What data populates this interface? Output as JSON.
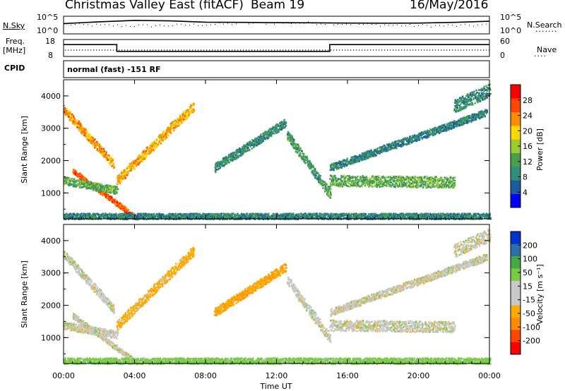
{
  "header": {
    "station": "Christmas Valley East (fitACF)",
    "beam": "Beam 19",
    "date": "16/May/2016"
  },
  "top_panels": {
    "nsky_label": "N.Sky",
    "nsky_ticks": [
      "10^5",
      "10^0"
    ],
    "nsearch_label": "N.Search",
    "freq_label_1": "Freq.",
    "freq_label_2": "[MHz]",
    "freq_ticks": [
      "18",
      "8"
    ],
    "nave_label": "Nave",
    "nave_ticks": [
      "60",
      "0"
    ],
    "cpid_label": "CPID",
    "cpid_text": "normal (fast) -151 RF"
  },
  "colors": {
    "power": [
      "#0000ff",
      "#1e5aa0",
      "#2f8f7a",
      "#4aa04a",
      "#9acd32",
      "#ffd700",
      "#ff8c00",
      "#ff4500",
      "#ff0000"
    ],
    "velocity": [
      "#ff0000",
      "#ff4500",
      "#ff8c00",
      "#ffaa00",
      "#c8c8c8",
      "#c8c8c8",
      "#77cc44",
      "#44aa44",
      "#2d6fa8",
      "#0033cc"
    ],
    "ground_scatter": "#c8c8c8"
  },
  "chart_data": [
    {
      "type": "line",
      "name": "nsky_nsearch",
      "ylabel": "N.Sky",
      "y2label": "N.Search",
      "scale": "log",
      "x": [
        "00:00",
        "02:00",
        "04:00",
        "06:00",
        "08:00",
        "10:00",
        "12:00",
        "14:00",
        "16:00",
        "18:00",
        "20:00",
        "22:00",
        "00:00"
      ],
      "values": [
        1000,
        4000,
        12000,
        8000,
        3000,
        2500,
        2000,
        1800,
        1500,
        1400,
        1500,
        2500,
        6000
      ]
    },
    {
      "type": "line",
      "name": "freq_nave",
      "ylabel": "Freq. [MHz]",
      "ylim": [
        8,
        18
      ],
      "y2label": "Nave",
      "y2lim": [
        0,
        60
      ],
      "x_hours": [
        0,
        3,
        3,
        15,
        15,
        24
      ],
      "frequency_mhz": [
        15,
        15,
        11,
        11,
        15,
        15
      ],
      "nave": [
        24,
        24,
        24,
        24,
        24,
        24
      ]
    },
    {
      "type": "heatmap",
      "name": "power",
      "xlabel": "Time UT",
      "ylabel": "Slant Range [km]",
      "colorbar_label": "Power [dB]",
      "colorbar_ticks": [
        "28",
        "24",
        "20",
        "16",
        "12",
        "8",
        "4"
      ],
      "x_ticks": [
        "00:00",
        "04:00",
        "08:00",
        "12:00",
        "16:00",
        "20:00",
        "00:00"
      ],
      "y_ticks": [
        "4000",
        "3000",
        "2000",
        "1000"
      ],
      "xlim": [
        0,
        24
      ],
      "ylim": [
        200,
        4500
      ],
      "zlim": [
        0,
        30
      ],
      "features": [
        {
          "t": [
            0.0,
            2.8
          ],
          "range": [
            3600,
            1900
          ],
          "value": 21,
          "spread": 130
        },
        {
          "t": [
            3.0,
            7.3
          ],
          "range": [
            1400,
            3700
          ],
          "value": 20,
          "spread": 150
        },
        {
          "t": [
            0.5,
            4.2
          ],
          "range": [
            1700,
            200
          ],
          "value": 24,
          "spread": 80
        },
        {
          "t": [
            0.0,
            3.0
          ],
          "range": [
            1400,
            1100
          ],
          "value": 12,
          "spread": 120
        },
        {
          "t": [
            8.5,
            12.5
          ],
          "range": [
            1800,
            3200
          ],
          "value": 9,
          "spread": 130
        },
        {
          "t": [
            12.6,
            15.0
          ],
          "range": [
            2800,
            1000
          ],
          "value": 10,
          "spread": 150
        },
        {
          "t": [
            15.0,
            22.0
          ],
          "range": [
            1400,
            1350
          ],
          "value": 12,
          "spread": 170
        },
        {
          "t": [
            15.0,
            23.8
          ],
          "range": [
            1800,
            3500
          ],
          "value": 8,
          "spread": 110
        },
        {
          "t": [
            22.0,
            24.0
          ],
          "range": [
            3700,
            4200
          ],
          "value": 9,
          "spread": 200
        },
        {
          "t": [
            0.0,
            24.0
          ],
          "range": [
            300,
            300
          ],
          "value": 8,
          "spread": 90
        }
      ]
    },
    {
      "type": "heatmap",
      "name": "velocity",
      "xlabel": "Time UT",
      "ylabel": "Slant Range [km]",
      "colorbar_label": "Velocity [m s⁻¹]",
      "colorbar_ticks": [
        "200",
        "100",
        "50",
        "15",
        "-15",
        "-50",
        "-100",
        "-200"
      ],
      "x_ticks": [
        "00:00",
        "04:00",
        "08:00",
        "12:00",
        "16:00",
        "20:00",
        "00:00"
      ],
      "y_ticks": [
        "4000",
        "3000",
        "2000",
        "1000"
      ],
      "xlim": [
        0,
        24
      ],
      "ylim": [
        200,
        4500
      ],
      "zlim": [
        -250,
        250
      ],
      "features": [
        {
          "t": [
            0.0,
            2.8
          ],
          "range": [
            3600,
            1900
          ],
          "value": 0,
          "spread": 130
        },
        {
          "t": [
            3.0,
            7.3
          ],
          "range": [
            1400,
            3700
          ],
          "value": -30,
          "spread": 150
        },
        {
          "t": [
            0.5,
            4.2
          ],
          "range": [
            1700,
            200
          ],
          "value": 0,
          "spread": 80
        },
        {
          "t": [
            0.0,
            3.0
          ],
          "range": [
            1400,
            1100
          ],
          "value": 0,
          "spread": 120
        },
        {
          "t": [
            8.5,
            12.5
          ],
          "range": [
            1800,
            3200
          ],
          "value": -40,
          "spread": 130
        },
        {
          "t": [
            12.6,
            15.0
          ],
          "range": [
            2800,
            1000
          ],
          "value": 0,
          "spread": 150
        },
        {
          "t": [
            15.0,
            22.0
          ],
          "range": [
            1400,
            1350
          ],
          "value": 0,
          "spread": 170
        },
        {
          "t": [
            15.0,
            23.8
          ],
          "range": [
            1800,
            3500
          ],
          "value": 0,
          "spread": 110
        },
        {
          "t": [
            22.0,
            24.0
          ],
          "range": [
            3700,
            4200
          ],
          "value": 0,
          "spread": 200
        },
        {
          "t": [
            0.0,
            24.0
          ],
          "range": [
            300,
            300
          ],
          "value": 30,
          "spread": 90
        }
      ]
    }
  ]
}
